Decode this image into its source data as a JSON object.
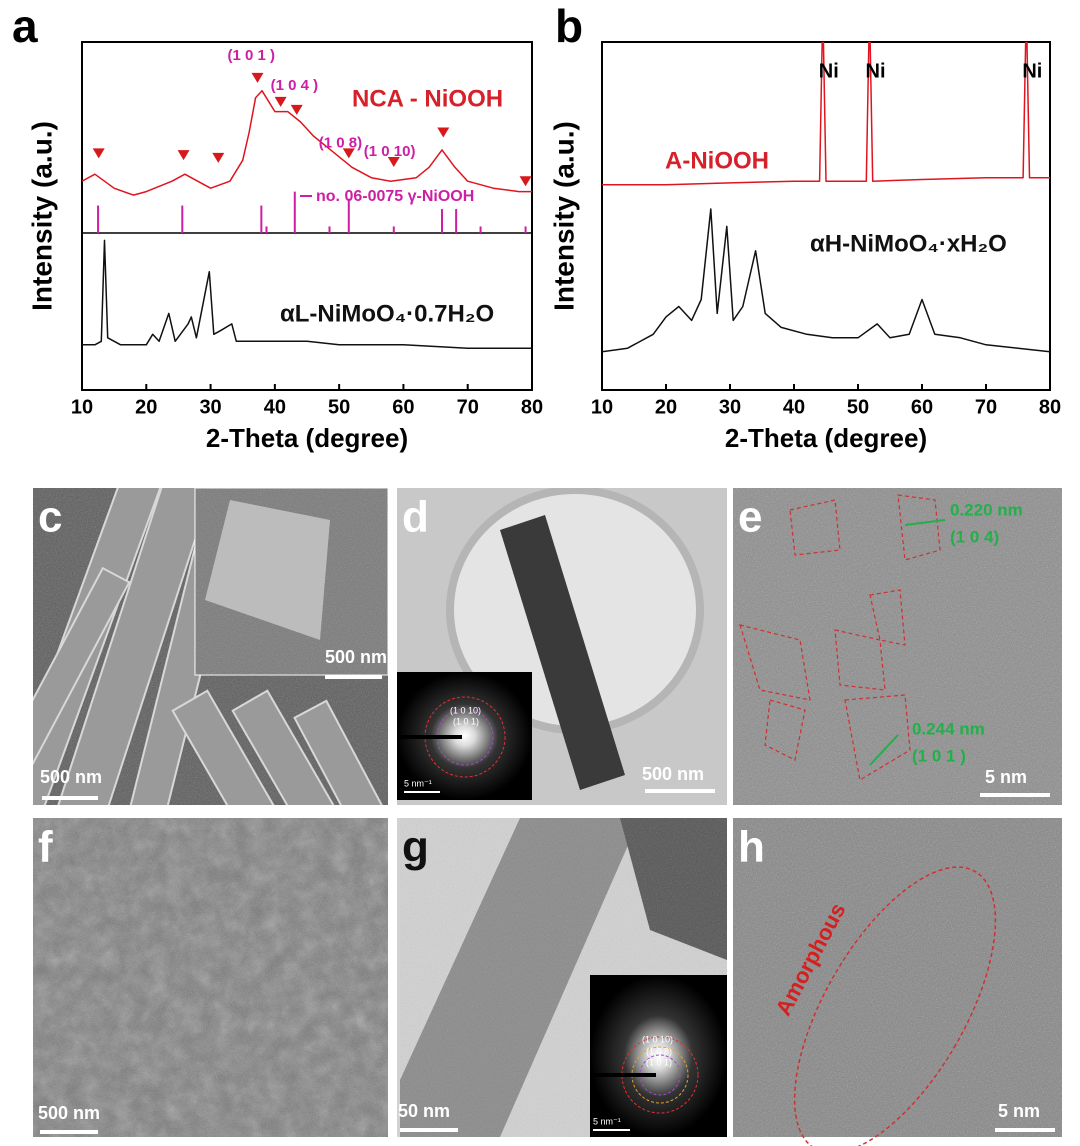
{
  "chart_data": [
    {
      "type": "line",
      "panel": "a",
      "xlabel": "2-Theta (degree)",
      "ylabel": "Intensity (a.u.)",
      "xlim": [
        10,
        80
      ],
      "xticks": [
        10,
        20,
        30,
        40,
        50,
        60,
        70,
        80
      ],
      "ylim": [
        0,
        100
      ],
      "series": [
        {
          "name": "NCA - NiOOH",
          "color": "#e0141e",
          "x": [
            10,
            12,
            15,
            18,
            20,
            24,
            26,
            28,
            30,
            33,
            35,
            36,
            37,
            38,
            40,
            42,
            44,
            46,
            48,
            50,
            52,
            55,
            58,
            62,
            64,
            66,
            68,
            70,
            74,
            78,
            80
          ],
          "values": [
            60,
            62,
            58,
            56,
            57,
            60,
            62,
            60,
            58,
            60,
            66,
            74,
            84,
            86,
            80,
            80,
            77,
            73,
            70,
            67,
            64,
            61,
            60,
            61,
            64,
            69,
            64,
            60,
            58,
            57,
            57
          ]
        },
        {
          "name": "αL-NiMoO₄·0.7H₂O",
          "color": "#111111",
          "x": [
            10,
            12,
            13,
            13.5,
            14,
            16,
            20,
            21,
            22,
            23.5,
            24.5,
            26.5,
            27,
            27.8,
            29.8,
            30.5,
            31.5,
            33.3,
            34,
            40,
            45,
            50,
            60,
            70,
            80
          ],
          "values": [
            13,
            13,
            14,
            43,
            15,
            13,
            13,
            16,
            14,
            22,
            14,
            19,
            21,
            15,
            34,
            16,
            17,
            19,
            14,
            14,
            14,
            13,
            13,
            12,
            12
          ]
        }
      ],
      "markers": {
        "color": "#d7191c",
        "x": [
          12.6,
          25.8,
          31.2,
          37.3,
          40.9,
          43.4,
          51.5,
          58.5,
          66.2,
          79
        ],
        "values": [
          68,
          67.5,
          66.7,
          89.7,
          82.8,
          80.5,
          68,
          65.5,
          74,
          60
        ],
        "labels": [
          null,
          null,
          null,
          "(1 0 1 )",
          "(1 0 4 )",
          null,
          "(1 0 8)",
          "(1 0 10)",
          null,
          null
        ]
      },
      "reference": {
        "name": "no. 06-0075 γ-NiOOH",
        "color": "#cc1fa3",
        "x": [
          12.5,
          25.6,
          37.9,
          38.7,
          43.1,
          48.5,
          51.5,
          58.5,
          66,
          68.2,
          72,
          79
        ],
        "values": [
          53,
          53,
          53,
          47,
          57,
          47,
          55,
          47,
          52,
          52,
          47,
          47
        ]
      }
    },
    {
      "type": "line",
      "panel": "b",
      "xlabel": "2-Theta (degree)",
      "ylabel": "Intensity (a.u.)",
      "xlim": [
        10,
        80
      ],
      "xticks": [
        10,
        20,
        30,
        40,
        50,
        60,
        70,
        80
      ],
      "ylim": [
        0,
        100
      ],
      "series": [
        {
          "name": "A-NiOOH",
          "color": "#e0141e",
          "x": [
            10,
            20,
            30,
            40,
            44,
            44.5,
            45,
            50,
            51.3,
            51.8,
            52.3,
            60,
            70,
            75.8,
            76.3,
            76.8,
            80
          ],
          "values": [
            59,
            59,
            59.5,
            60,
            60,
            110,
            60,
            60,
            60,
            110,
            60,
            60.5,
            61,
            61,
            110,
            61,
            61
          ]
        },
        {
          "name": "αH-NiMoO₄·xH₂O",
          "color": "#111111",
          "x": [
            10,
            14,
            18,
            20,
            22,
            24,
            25.5,
            27,
            28,
            29.5,
            30.5,
            32,
            34,
            35.5,
            38,
            42,
            46,
            50,
            53,
            55,
            58,
            60,
            62,
            66,
            70,
            75,
            80
          ],
          "values": [
            11,
            12,
            16,
            21,
            24,
            20,
            26,
            52,
            22,
            47,
            20,
            24,
            40,
            22,
            18,
            16,
            15,
            15,
            19,
            15,
            16,
            26,
            16,
            15,
            13,
            12,
            11
          ]
        }
      ],
      "peak_labels": {
        "x": [
          44.5,
          51.8,
          76.3
        ],
        "labels": [
          "Ni",
          "Ni",
          "Ni"
        ]
      }
    }
  ],
  "images": [
    {
      "panel": "c",
      "inset_scale_bar": "500 nm",
      "scale_bar": "500 nm"
    },
    {
      "panel": "d",
      "scale_bar": "500 nm",
      "inset_rings": [
        "(1 0 10)",
        "(1 0 1)"
      ],
      "inset_scale_bar": "5 nm⁻¹"
    },
    {
      "panel": "e",
      "fringes": [
        {
          "spacing": "0.220 nm",
          "plane": "(1 0 4)"
        },
        {
          "spacing": "0.244 nm",
          "plane": "(1 0 1 )"
        }
      ],
      "scale_bar": "5 nm"
    },
    {
      "panel": "f",
      "scale_bar": "500 nm"
    },
    {
      "panel": "g",
      "scale_bar": "50 nm",
      "inset_rings": [
        "(1 0 10)",
        "(1 0 8)",
        "(1 0 1)"
      ],
      "inset_scale_bar": "5 nm⁻¹"
    },
    {
      "panel": "h",
      "annotation": "Amorphous",
      "scale_bar": "5 nm"
    }
  ]
}
